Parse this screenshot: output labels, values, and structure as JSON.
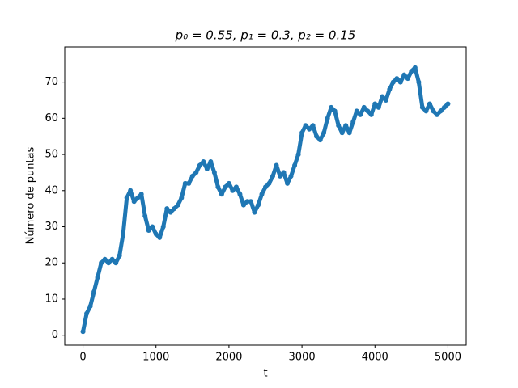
{
  "chart_data": {
    "type": "line",
    "title": "p₀ = 0.55, p₁ = 0.3, p₂ = 0.15",
    "xlabel": "t",
    "ylabel": "Número de puntas",
    "x": [
      0,
      50,
      100,
      150,
      200,
      250,
      300,
      350,
      400,
      450,
      500,
      550,
      600,
      650,
      700,
      750,
      800,
      850,
      900,
      950,
      1000,
      1050,
      1100,
      1150,
      1200,
      1250,
      1300,
      1350,
      1400,
      1450,
      1500,
      1550,
      1600,
      1650,
      1700,
      1750,
      1800,
      1850,
      1900,
      1950,
      2000,
      2050,
      2100,
      2150,
      2200,
      2250,
      2300,
      2350,
      2400,
      2450,
      2500,
      2550,
      2600,
      2650,
      2700,
      2750,
      2800,
      2850,
      2900,
      2950,
      3000,
      3050,
      3100,
      3150,
      3200,
      3250,
      3300,
      3350,
      3400,
      3450,
      3500,
      3550,
      3600,
      3650,
      3700,
      3750,
      3800,
      3850,
      3900,
      3950,
      4000,
      4050,
      4100,
      4150,
      4200,
      4250,
      4300,
      4350,
      4400,
      4450,
      4500,
      4550,
      4600,
      4650,
      4700,
      4750,
      4800,
      4850,
      4900,
      4950,
      5000
    ],
    "series": [
      {
        "color": "#1f77b4",
        "values": [
          1,
          6,
          8,
          12,
          16,
          20,
          21,
          20,
          21,
          20,
          22,
          28,
          38,
          40,
          37,
          38,
          39,
          33,
          29,
          30,
          28,
          27,
          30,
          35,
          34,
          35,
          36,
          38,
          42,
          42,
          44,
          45,
          47,
          48,
          46,
          48,
          45,
          41,
          39,
          41,
          42,
          40,
          41,
          39,
          36,
          37,
          37,
          34,
          36,
          39,
          41,
          42,
          44,
          47,
          44,
          45,
          42,
          44,
          47,
          50,
          56,
          58,
          57,
          58,
          55,
          54,
          56,
          60,
          63,
          62,
          58,
          56,
          58,
          56,
          59,
          62,
          61,
          63,
          62,
          61,
          64,
          63,
          66,
          65,
          68,
          70,
          71,
          70,
          72,
          71,
          73,
          74,
          70,
          63,
          62,
          64,
          62,
          61,
          62,
          63,
          64
        ]
      }
    ],
    "xlim": [
      -250,
      5250
    ],
    "ylim": [
      -2.75,
      79.75
    ],
    "xticks": [
      0,
      1000,
      2000,
      3000,
      4000,
      5000
    ],
    "yticks": [
      0,
      10,
      20,
      30,
      40,
      50,
      60,
      70
    ]
  }
}
